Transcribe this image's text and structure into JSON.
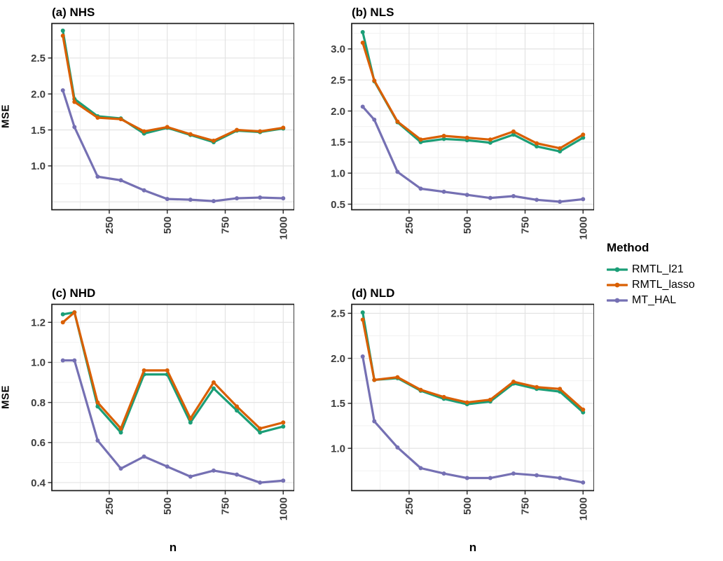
{
  "figure": {
    "background": "#FFFFFF",
    "panel_border_color": "#1A1A1A",
    "grid_major_color": "#E3E3E3",
    "grid_minor_color": "#EFEFEF",
    "axis_text_color": "#3D3D3D"
  },
  "legend": {
    "title": "Method",
    "position": "right",
    "items": [
      {
        "label": "RMTL_l21",
        "color": "#1B9E77"
      },
      {
        "label": "RMTL_lasso",
        "color": "#D95F02"
      },
      {
        "label": "MT_HAL",
        "color": "#7570B3"
      }
    ]
  },
  "draw_order": [
    2,
    0,
    1
  ],
  "chart_data": [
    {
      "type": "line",
      "title": "(a) NHS",
      "xlabel": "",
      "ylabel": "MSE",
      "grid": true,
      "x": [
        50,
        100,
        200,
        300,
        400,
        500,
        600,
        700,
        800,
        900,
        1000
      ],
      "series": [
        {
          "name": "RMTL_l21",
          "color": "#1B9E77",
          "values": [
            2.88,
            1.93,
            1.69,
            1.66,
            1.45,
            1.53,
            1.43,
            1.33,
            1.49,
            1.47,
            1.52
          ]
        },
        {
          "name": "RMTL_lasso",
          "color": "#D95F02",
          "values": [
            2.81,
            1.89,
            1.67,
            1.65,
            1.48,
            1.54,
            1.44,
            1.35,
            1.5,
            1.48,
            1.53
          ]
        },
        {
          "name": "MT_HAL",
          "color": "#7570B3",
          "values": [
            2.05,
            1.54,
            0.85,
            0.8,
            0.66,
            0.54,
            0.53,
            0.51,
            0.55,
            0.56,
            0.55
          ]
        }
      ],
      "xlim": [
        2.5,
        1047.5
      ],
      "ylim": [
        0.39,
        2.98
      ],
      "x_step": 250,
      "y_step": 0.5,
      "xticks": [
        250,
        500,
        750,
        1000
      ],
      "xtick_labels": [
        "250",
        "500",
        "750",
        "1000"
      ],
      "yticks": [
        1.0,
        1.5,
        2.0,
        2.5
      ],
      "ytick_labels": [
        "1.0",
        "1.5",
        "2.0",
        "2.5"
      ]
    },
    {
      "type": "line",
      "title": "(b) NLS",
      "xlabel": "",
      "ylabel": "",
      "grid": true,
      "x": [
        50,
        100,
        200,
        300,
        400,
        500,
        600,
        700,
        800,
        900,
        1000
      ],
      "series": [
        {
          "name": "RMTL_l21",
          "color": "#1B9E77",
          "values": [
            3.27,
            2.48,
            1.82,
            1.5,
            1.55,
            1.53,
            1.49,
            1.62,
            1.43,
            1.35,
            1.57
          ]
        },
        {
          "name": "RMTL_lasso",
          "color": "#D95F02",
          "values": [
            3.1,
            2.49,
            1.83,
            1.54,
            1.6,
            1.57,
            1.54,
            1.67,
            1.48,
            1.4,
            1.62
          ]
        },
        {
          "name": "MT_HAL",
          "color": "#7570B3",
          "values": [
            2.07,
            1.86,
            1.02,
            0.75,
            0.7,
            0.65,
            0.6,
            0.63,
            0.57,
            0.54,
            0.58
          ]
        }
      ],
      "xlim": [
        2.5,
        1047.5
      ],
      "ylim": [
        0.41,
        3.41
      ],
      "x_step": 250,
      "y_step": 0.5,
      "xticks": [
        250,
        500,
        750,
        1000
      ],
      "xtick_labels": [
        "250",
        "500",
        "750",
        "1000"
      ],
      "yticks": [
        0.5,
        1.0,
        1.5,
        2.0,
        2.5,
        3.0
      ],
      "ytick_labels": [
        "0.5",
        "1.0",
        "1.5",
        "2.0",
        "2.5",
        "3.0"
      ]
    },
    {
      "type": "line",
      "title": "(c) NHD",
      "xlabel": "n",
      "ylabel": "MSE",
      "grid": true,
      "x": [
        50,
        100,
        200,
        300,
        400,
        500,
        600,
        700,
        800,
        900,
        1000
      ],
      "series": [
        {
          "name": "RMTL_l21",
          "color": "#1B9E77",
          "values": [
            1.24,
            1.25,
            0.78,
            0.65,
            0.94,
            0.94,
            0.7,
            0.87,
            0.76,
            0.65,
            0.68
          ]
        },
        {
          "name": "RMTL_lasso",
          "color": "#D95F02",
          "values": [
            1.2,
            1.25,
            0.8,
            0.67,
            0.96,
            0.96,
            0.72,
            0.9,
            0.78,
            0.67,
            0.7
          ]
        },
        {
          "name": "MT_HAL",
          "color": "#7570B3",
          "values": [
            1.01,
            1.01,
            0.61,
            0.47,
            0.53,
            0.48,
            0.43,
            0.46,
            0.44,
            0.4,
            0.41
          ]
        }
      ],
      "xlim": [
        2.5,
        1047.5
      ],
      "ylim": [
        0.36,
        1.29
      ],
      "x_step": 250,
      "y_step": 0.2,
      "xticks": [
        250,
        500,
        750,
        1000
      ],
      "xtick_labels": [
        "250",
        "500",
        "750",
        "1000"
      ],
      "yticks": [
        0.4,
        0.6,
        0.8,
        1.0,
        1.2
      ],
      "ytick_labels": [
        "0.4",
        "0.6",
        "0.8",
        "1.0",
        "1.2"
      ]
    },
    {
      "type": "line",
      "title": "(d) NLD",
      "xlabel": "n",
      "ylabel": "",
      "grid": true,
      "x": [
        50,
        100,
        200,
        300,
        400,
        500,
        600,
        700,
        800,
        900,
        1000
      ],
      "series": [
        {
          "name": "RMTL_l21",
          "color": "#1B9E77",
          "values": [
            2.51,
            1.76,
            1.78,
            1.64,
            1.55,
            1.49,
            1.52,
            1.72,
            1.66,
            1.63,
            1.4
          ]
        },
        {
          "name": "RMTL_lasso",
          "color": "#D95F02",
          "values": [
            2.43,
            1.76,
            1.79,
            1.65,
            1.57,
            1.51,
            1.54,
            1.74,
            1.68,
            1.66,
            1.43
          ]
        },
        {
          "name": "MT_HAL",
          "color": "#7570B3",
          "values": [
            2.02,
            1.3,
            1.01,
            0.78,
            0.72,
            0.67,
            0.67,
            0.72,
            0.7,
            0.67,
            0.62
          ]
        }
      ],
      "xlim": [
        2.5,
        1047.5
      ],
      "ylim": [
        0.53,
        2.6
      ],
      "x_step": 250,
      "y_step": 0.5,
      "xticks": [
        250,
        500,
        750,
        1000
      ],
      "xtick_labels": [
        "250",
        "500",
        "750",
        "1000"
      ],
      "yticks": [
        1.0,
        1.5,
        2.0,
        2.5
      ],
      "ytick_labels": [
        "1.0",
        "1.5",
        "2.0",
        "2.5"
      ]
    }
  ]
}
